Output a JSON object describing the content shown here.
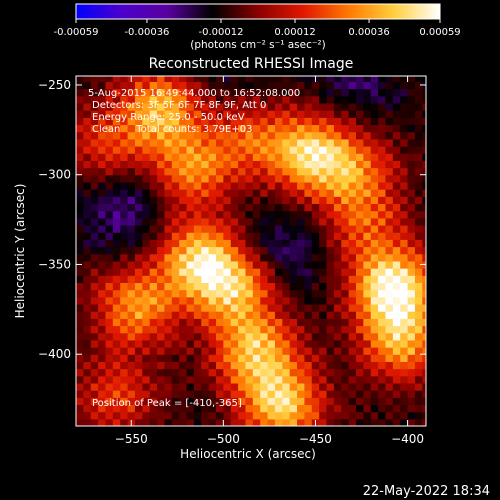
{
  "colorbar": {
    "tick_labels": [
      "-0.00059",
      "-0.00036",
      "-0.00012",
      "0.00012",
      "0.00036",
      "0.00059"
    ],
    "tick_values": [
      -0.00059,
      -0.00036,
      -0.00012,
      0.00012,
      0.00036,
      0.00059
    ],
    "range": [
      -0.00059,
      0.00059
    ],
    "unit_label": "(photons cm⁻² s⁻¹ asec⁻²)",
    "colors": [
      "#0000ff",
      "#4b00cc",
      "#5a00a0",
      "#000000",
      "#8a0000",
      "#e01800",
      "#ff7a00",
      "#ffd040",
      "#ffffff"
    ]
  },
  "image": {
    "title": "Reconstructed RHESSI Image",
    "info_lines": [
      "5-Aug-2015 16:49:44.000 to 16:52:08.000",
      "Detectors: 3F 5F 6F 7F 8F 9F, Att 0",
      "Energy Range: 25.0 - 50.0 keV",
      "Clean     Total counts: 3.79E+03"
    ],
    "peak_text": "Position of Peak = [-410,-365]",
    "xlabel": "Heliocentric X (arcsec)",
    "ylabel": "Heliocentric Y (arcsec)",
    "x_ticks": [
      -550,
      -500,
      -450,
      -400
    ],
    "x_tick_labels": [
      "−550",
      "−500",
      "−450",
      "−400"
    ],
    "y_ticks": [
      -250,
      -300,
      -350,
      -400
    ],
    "y_tick_labels": [
      "−250",
      "−300",
      "−350",
      "−400"
    ],
    "xlim": [
      -580,
      -390
    ],
    "ylim": [
      -440,
      -245
    ],
    "pixel_size_arcsec": 4,
    "hot_spots": [
      {
        "x": -535,
        "y": -265,
        "strength": 0.9
      },
      {
        "x": -520,
        "y": -300,
        "strength": 0.7
      },
      {
        "x": -490,
        "y": -280,
        "strength": 0.6
      },
      {
        "x": -455,
        "y": -290,
        "strength": 1.0
      },
      {
        "x": -430,
        "y": -300,
        "strength": 0.6
      },
      {
        "x": -565,
        "y": -285,
        "strength": 0.5
      },
      {
        "x": -515,
        "y": -350,
        "strength": 1.0
      },
      {
        "x": -495,
        "y": -365,
        "strength": 0.8
      },
      {
        "x": -550,
        "y": -375,
        "strength": 0.8
      },
      {
        "x": -485,
        "y": -400,
        "strength": 0.9
      },
      {
        "x": -470,
        "y": -430,
        "strength": 1.0
      },
      {
        "x": -410,
        "y": -365,
        "strength": 1.2
      },
      {
        "x": -405,
        "y": -395,
        "strength": 0.8
      },
      {
        "x": -425,
        "y": -330,
        "strength": 0.5
      },
      {
        "x": -560,
        "y": -425,
        "strength": 0.5
      }
    ],
    "cold_spots": [
      {
        "x": -555,
        "y": -320,
        "strength": 0.9
      },
      {
        "x": -470,
        "y": -345,
        "strength": 0.8
      },
      {
        "x": -430,
        "y": -250,
        "strength": 0.6
      },
      {
        "x": -500,
        "y": -255,
        "strength": 0.5
      }
    ]
  },
  "footer": {
    "date": "22-May-2022 18:34"
  }
}
